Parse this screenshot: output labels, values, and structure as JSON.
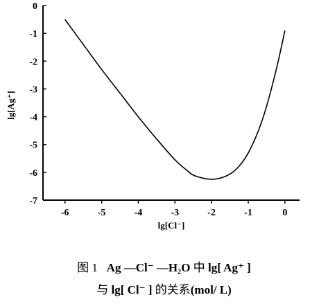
{
  "chart_data": {
    "type": "line",
    "xlabel": "lg[Cl⁻]",
    "ylabel": "lg[Ag⁺]",
    "xlim": [
      -6.6,
      0.4
    ],
    "ylim": [
      -7,
      0
    ],
    "x_ticks": [
      -6,
      -5,
      -4,
      -3,
      -2,
      -1,
      0
    ],
    "x_tick_labels": [
      "-6",
      "-5",
      "-4",
      "-3",
      "-2",
      "-1",
      "0"
    ],
    "y_ticks": [
      0,
      -1,
      -2,
      -3,
      -4,
      -5,
      -6,
      -7
    ],
    "y_tick_labels": [
      "0",
      "-1",
      "-2",
      "-3",
      "-4",
      "-5",
      "-6",
      "-7"
    ],
    "grid": false,
    "series": [
      {
        "x": [
          -6.0,
          -5.5,
          -5.0,
          -4.5,
          -4.0,
          -3.5,
          -3.0,
          -2.7,
          -2.5,
          -2.2,
          -2.0,
          -1.8,
          -1.6,
          -1.4,
          -1.2,
          -1.0,
          -0.8,
          -0.6,
          -0.4,
          -0.2,
          0.0
        ],
        "y": [
          -0.5,
          -1.4,
          -2.3,
          -3.15,
          -4.0,
          -4.8,
          -5.55,
          -5.9,
          -6.1,
          -6.22,
          -6.25,
          -6.22,
          -6.13,
          -5.97,
          -5.7,
          -5.3,
          -4.75,
          -4.05,
          -3.15,
          -2.1,
          -0.9
        ]
      }
    ]
  },
  "caption": {
    "line1_prefix": "图 1",
    "line1_formula": "Ag —Cl⁻ —H₂O",
    "line1_mid": "中",
    "line1_end": "lg[ Ag⁺ ]",
    "line2_prefix": "与",
    "line2_formula": "lg[ Cl⁻ ]",
    "line2_suffix": "的关系",
    "line2_units": "(mol/ L)"
  }
}
